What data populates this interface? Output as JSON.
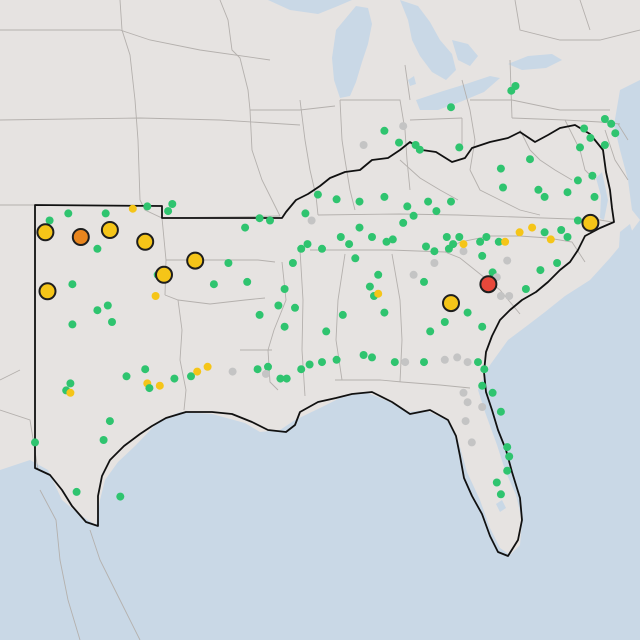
{
  "map": {
    "colors": {
      "land": "#e6e3e1",
      "water": "#c9d8e6",
      "state_line": "#b4b0ad",
      "region_outline": "#111111",
      "good": "#2fc46f",
      "moderate": "#f5c518",
      "unhealthy_sensitive": "#e8851e",
      "unhealthy": "#e8483b",
      "no_data": "#c4c4c4"
    },
    "small_markers": [
      {
        "status": "good",
        "lon": -99.6,
        "lat": 36.6
      },
      {
        "status": "good",
        "lon": -97.6,
        "lat": 36.9
      },
      {
        "status": "moderate",
        "lon": -98.3,
        "lat": 36.8
      },
      {
        "status": "good",
        "lon": -96.4,
        "lat": 37.0
      },
      {
        "status": "good",
        "lon": -96.6,
        "lat": 36.7
      },
      {
        "status": "good",
        "lon": -101.4,
        "lat": 36.6
      },
      {
        "status": "good",
        "lon": -102.3,
        "lat": 36.3
      },
      {
        "status": "good",
        "lon": -101.0,
        "lat": 35.5
      },
      {
        "status": "good",
        "lon": -100.0,
        "lat": 35.1
      },
      {
        "status": "good",
        "lon": -101.2,
        "lat": 33.6
      },
      {
        "status": "good",
        "lon": -100.0,
        "lat": 32.5
      },
      {
        "status": "good",
        "lon": -99.5,
        "lat": 32.7
      },
      {
        "status": "good",
        "lon": -101.2,
        "lat": 31.9
      },
      {
        "status": "good",
        "lon": -99.3,
        "lat": 32.0
      },
      {
        "status": "good",
        "lon": -97.1,
        "lat": 34.0
      },
      {
        "status": "moderate",
        "lon": -97.2,
        "lat": 33.1
      },
      {
        "status": "good",
        "lon": -98.6,
        "lat": 29.7
      },
      {
        "status": "good",
        "lon": -97.7,
        "lat": 30.0
      },
      {
        "status": "moderate",
        "lon": -97.6,
        "lat": 29.4
      },
      {
        "status": "good",
        "lon": -97.5,
        "lat": 29.2
      },
      {
        "status": "moderate",
        "lon": -97.0,
        "lat": 29.3
      },
      {
        "status": "good",
        "lon": -96.3,
        "lat": 29.6
      },
      {
        "status": "moderate",
        "lon": -95.2,
        "lat": 29.9
      },
      {
        "status": "moderate",
        "lon": -94.7,
        "lat": 30.1
      },
      {
        "status": "good",
        "lon": -95.5,
        "lat": 29.7
      },
      {
        "status": "no_data",
        "lon": -93.5,
        "lat": 29.9
      },
      {
        "status": "good",
        "lon": -101.3,
        "lat": 29.4
      },
      {
        "status": "good",
        "lon": -101.5,
        "lat": 29.1
      },
      {
        "status": "moderate",
        "lon": -101.3,
        "lat": 29.0
      },
      {
        "status": "good",
        "lon": -99.4,
        "lat": 27.8
      },
      {
        "status": "good",
        "lon": -99.7,
        "lat": 27.0
      },
      {
        "status": "good",
        "lon": -103.0,
        "lat": 26.9
      },
      {
        "status": "good",
        "lon": -101.0,
        "lat": 24.8
      },
      {
        "status": "good",
        "lon": -98.9,
        "lat": 24.6
      },
      {
        "status": "good",
        "lon": -92.3,
        "lat": 30.0
      },
      {
        "status": "good",
        "lon": -91.8,
        "lat": 30.1
      },
      {
        "status": "no_data",
        "lon": -91.9,
        "lat": 29.8
      },
      {
        "status": "good",
        "lon": -91.2,
        "lat": 29.6
      },
      {
        "status": "good",
        "lon": -90.9,
        "lat": 29.6
      },
      {
        "status": "good",
        "lon": -90.2,
        "lat": 30.0
      },
      {
        "status": "good",
        "lon": -89.8,
        "lat": 30.2
      },
      {
        "status": "good",
        "lon": -89.2,
        "lat": 30.3
      },
      {
        "status": "good",
        "lon": -88.5,
        "lat": 30.4
      },
      {
        "status": "good",
        "lon": -87.2,
        "lat": 30.6
      },
      {
        "status": "good",
        "lon": -86.8,
        "lat": 30.5
      },
      {
        "status": "good",
        "lon": -85.7,
        "lat": 30.3
      },
      {
        "status": "no_data",
        "lon": -85.2,
        "lat": 30.3
      },
      {
        "status": "good",
        "lon": -84.3,
        "lat": 30.3
      },
      {
        "status": "no_data",
        "lon": -83.3,
        "lat": 30.4
      },
      {
        "status": "no_data",
        "lon": -82.7,
        "lat": 30.5
      },
      {
        "status": "no_data",
        "lon": -82.2,
        "lat": 30.3
      },
      {
        "status": "good",
        "lon": -81.7,
        "lat": 30.3
      },
      {
        "status": "good",
        "lon": -81.4,
        "lat": 30.0
      },
      {
        "status": "good",
        "lon": -81.5,
        "lat": 29.3
      },
      {
        "status": "good",
        "lon": -81.0,
        "lat": 29.0
      },
      {
        "status": "no_data",
        "lon": -82.4,
        "lat": 29.0
      },
      {
        "status": "no_data",
        "lon": -82.2,
        "lat": 28.6
      },
      {
        "status": "no_data",
        "lon": -81.5,
        "lat": 28.4
      },
      {
        "status": "good",
        "lon": -80.6,
        "lat": 28.2
      },
      {
        "status": "no_data",
        "lon": -82.3,
        "lat": 27.8
      },
      {
        "status": "no_data",
        "lon": -82.0,
        "lat": 26.9
      },
      {
        "status": "good",
        "lon": -80.3,
        "lat": 26.7
      },
      {
        "status": "good",
        "lon": -80.2,
        "lat": 26.3
      },
      {
        "status": "good",
        "lon": -80.3,
        "lat": 25.7
      },
      {
        "status": "good",
        "lon": -80.8,
        "lat": 25.2
      },
      {
        "status": "good",
        "lon": -80.6,
        "lat": 24.7
      },
      {
        "status": "good",
        "lon": -91.0,
        "lat": 33.4
      },
      {
        "status": "good",
        "lon": -90.5,
        "lat": 32.6
      },
      {
        "status": "good",
        "lon": -91.0,
        "lat": 31.8
      },
      {
        "status": "good",
        "lon": -89.0,
        "lat": 31.6
      },
      {
        "status": "good",
        "lon": -88.2,
        "lat": 32.3
      },
      {
        "status": "good",
        "lon": -86.9,
        "lat": 33.5
      },
      {
        "status": "good",
        "lon": -86.7,
        "lat": 33.1
      },
      {
        "status": "moderate",
        "lon": -86.5,
        "lat": 33.2
      },
      {
        "status": "good",
        "lon": -86.2,
        "lat": 32.4
      },
      {
        "status": "good",
        "lon": -86.5,
        "lat": 34.0
      },
      {
        "status": "good",
        "lon": -87.6,
        "lat": 34.7
      },
      {
        "status": "good",
        "lon": -87.9,
        "lat": 35.3
      },
      {
        "status": "good",
        "lon": -86.8,
        "lat": 35.6
      },
      {
        "status": "good",
        "lon": -86.1,
        "lat": 35.4
      },
      {
        "status": "good",
        "lon": -85.8,
        "lat": 35.5
      },
      {
        "status": "good",
        "lon": -84.2,
        "lat": 35.2
      },
      {
        "status": "good",
        "lon": -83.8,
        "lat": 35.0
      },
      {
        "status": "good",
        "lon": -83.1,
        "lat": 35.1
      },
      {
        "status": "no_data",
        "lon": -82.4,
        "lat": 35.0
      },
      {
        "status": "good",
        "lon": -83.2,
        "lat": 35.6
      },
      {
        "status": "good",
        "lon": -82.6,
        "lat": 35.6
      },
      {
        "status": "good",
        "lon": -82.9,
        "lat": 35.3
      },
      {
        "status": "moderate",
        "lon": -82.4,
        "lat": 35.3
      },
      {
        "status": "good",
        "lon": -81.6,
        "lat": 35.4
      },
      {
        "status": "good",
        "lon": -81.3,
        "lat": 35.6
      },
      {
        "status": "good",
        "lon": -80.7,
        "lat": 35.4
      },
      {
        "status": "moderate",
        "lon": -80.4,
        "lat": 35.4
      },
      {
        "status": "moderate",
        "lon": -79.7,
        "lat": 35.8
      },
      {
        "status": "moderate",
        "lon": -79.1,
        "lat": 36.0
      },
      {
        "status": "good",
        "lon": -78.5,
        "lat": 35.8
      },
      {
        "status": "moderate",
        "lon": -78.2,
        "lat": 35.5
      },
      {
        "status": "good",
        "lon": -77.7,
        "lat": 35.9
      },
      {
        "status": "good",
        "lon": -77.4,
        "lat": 35.6
      },
      {
        "status": "good",
        "lon": -76.9,
        "lat": 36.3
      },
      {
        "status": "good",
        "lon": -77.9,
        "lat": 34.5
      },
      {
        "status": "good",
        "lon": -78.7,
        "lat": 34.2
      },
      {
        "status": "good",
        "lon": -81.5,
        "lat": 34.8
      },
      {
        "status": "good",
        "lon": -81.0,
        "lat": 34.1
      },
      {
        "status": "no_data",
        "lon": -80.3,
        "lat": 34.6
      },
      {
        "status": "no_data",
        "lon": -80.8,
        "lat": 33.9
      },
      {
        "status": "good",
        "lon": -79.4,
        "lat": 33.4
      },
      {
        "status": "no_data",
        "lon": -80.6,
        "lat": 33.1
      },
      {
        "status": "no_data",
        "lon": -80.2,
        "lat": 33.1
      },
      {
        "status": "good",
        "lon": -82.2,
        "lat": 32.4
      },
      {
        "status": "good",
        "lon": -81.5,
        "lat": 31.8
      },
      {
        "status": "good",
        "lon": -83.3,
        "lat": 32.0
      },
      {
        "status": "good",
        "lon": -84.0,
        "lat": 31.6
      },
      {
        "status": "good",
        "lon": -84.3,
        "lat": 33.7
      },
      {
        "status": "no_data",
        "lon": -83.8,
        "lat": 34.5
      },
      {
        "status": "no_data",
        "lon": -84.8,
        "lat": 34.0
      },
      {
        "status": "good",
        "lon": -83.7,
        "lat": 36.7
      },
      {
        "status": "good",
        "lon": -84.1,
        "lat": 37.1
      },
      {
        "status": "good",
        "lon": -85.1,
        "lat": 36.9
      },
      {
        "status": "good",
        "lon": -86.2,
        "lat": 37.3
      },
      {
        "status": "good",
        "lon": -87.4,
        "lat": 37.1
      },
      {
        "status": "good",
        "lon": -88.5,
        "lat": 37.2
      },
      {
        "status": "good",
        "lon": -89.4,
        "lat": 37.4
      },
      {
        "status": "no_data",
        "lon": -89.7,
        "lat": 36.3
      },
      {
        "status": "good",
        "lon": -89.9,
        "lat": 35.3
      },
      {
        "status": "good",
        "lon": -90.2,
        "lat": 35.1
      },
      {
        "status": "good",
        "lon": -89.2,
        "lat": 35.1
      },
      {
        "status": "good",
        "lon": -88.3,
        "lat": 35.6
      },
      {
        "status": "good",
        "lon": -87.4,
        "lat": 36.0
      },
      {
        "status": "good",
        "lon": -85.3,
        "lat": 36.2
      },
      {
        "status": "good",
        "lon": -84.8,
        "lat": 36.5
      },
      {
        "status": "good",
        "lon": -83.0,
        "lat": 37.1
      },
      {
        "status": "good",
        "lon": -85.5,
        "lat": 39.6
      },
      {
        "status": "no_data",
        "lon": -85.3,
        "lat": 40.3
      },
      {
        "status": "good",
        "lon": -84.5,
        "lat": 39.3
      },
      {
        "status": "good",
        "lon": -84.7,
        "lat": 39.5
      },
      {
        "status": "no_data",
        "lon": -87.2,
        "lat": 39.5
      },
      {
        "status": "good",
        "lon": -86.2,
        "lat": 40.1
      },
      {
        "status": "good",
        "lon": -83.0,
        "lat": 41.1
      },
      {
        "status": "good",
        "lon": -82.6,
        "lat": 39.4
      },
      {
        "status": "good",
        "lon": -80.6,
        "lat": 38.5
      },
      {
        "status": "good",
        "lon": -79.2,
        "lat": 38.9
      },
      {
        "status": "good",
        "lon": -78.5,
        "lat": 37.3
      },
      {
        "status": "good",
        "lon": -80.5,
        "lat": 37.7
      },
      {
        "status": "good",
        "lon": -78.8,
        "lat": 37.6
      },
      {
        "status": "good",
        "lon": -77.4,
        "lat": 37.5
      },
      {
        "status": "good",
        "lon": -76.9,
        "lat": 38.0
      },
      {
        "status": "good",
        "lon": -76.8,
        "lat": 39.4
      },
      {
        "status": "good",
        "lon": -76.3,
        "lat": 39.8
      },
      {
        "status": "good",
        "lon": -75.6,
        "lat": 39.5
      },
      {
        "status": "good",
        "lon": -76.2,
        "lat": 38.2
      },
      {
        "status": "good",
        "lon": -76.1,
        "lat": 37.3
      },
      {
        "status": "good",
        "lon": -75.1,
        "lat": 40.0
      },
      {
        "status": "good",
        "lon": -75.6,
        "lat": 40.6
      },
      {
        "status": "good",
        "lon": -75.3,
        "lat": 40.4
      },
      {
        "status": "good",
        "lon": -79.9,
        "lat": 42.0
      },
      {
        "status": "good",
        "lon": -80.1,
        "lat": 41.8
      },
      {
        "status": "good",
        "lon": -76.6,
        "lat": 40.2
      },
      {
        "status": "good",
        "lon": -90.0,
        "lat": 36.6
      },
      {
        "status": "good",
        "lon": -91.7,
        "lat": 36.3
      },
      {
        "status": "good",
        "lon": -92.2,
        "lat": 36.4
      },
      {
        "status": "good",
        "lon": -92.9,
        "lat": 36.0
      },
      {
        "status": "good",
        "lon": -93.7,
        "lat": 34.5
      },
      {
        "status": "good",
        "lon": -94.4,
        "lat": 33.6
      },
      {
        "status": "good",
        "lon": -92.8,
        "lat": 33.7
      },
      {
        "status": "good",
        "lon": -90.6,
        "lat": 34.5
      },
      {
        "status": "good",
        "lon": -91.3,
        "lat": 32.7
      },
      {
        "status": "good",
        "lon": -92.2,
        "lat": 32.3
      }
    ],
    "large_markers": [
      {
        "status": "moderate",
        "lon": -102.5,
        "lat": 35.8
      },
      {
        "status": "unhealthy_sensitive",
        "lon": -100.8,
        "lat": 35.6
      },
      {
        "status": "moderate",
        "lon": -99.4,
        "lat": 35.9
      },
      {
        "status": "moderate",
        "lon": -97.7,
        "lat": 35.4
      },
      {
        "status": "moderate",
        "lon": -95.3,
        "lat": 34.6
      },
      {
        "status": "moderate",
        "lon": -96.8,
        "lat": 34.0
      },
      {
        "status": "moderate",
        "lon": -102.4,
        "lat": 33.3
      },
      {
        "status": "moderate",
        "lon": -83.0,
        "lat": 32.8
      },
      {
        "status": "unhealthy",
        "lon": -81.2,
        "lat": 33.6
      },
      {
        "status": "moderate",
        "lon": -76.3,
        "lat": 36.2
      }
    ]
  }
}
